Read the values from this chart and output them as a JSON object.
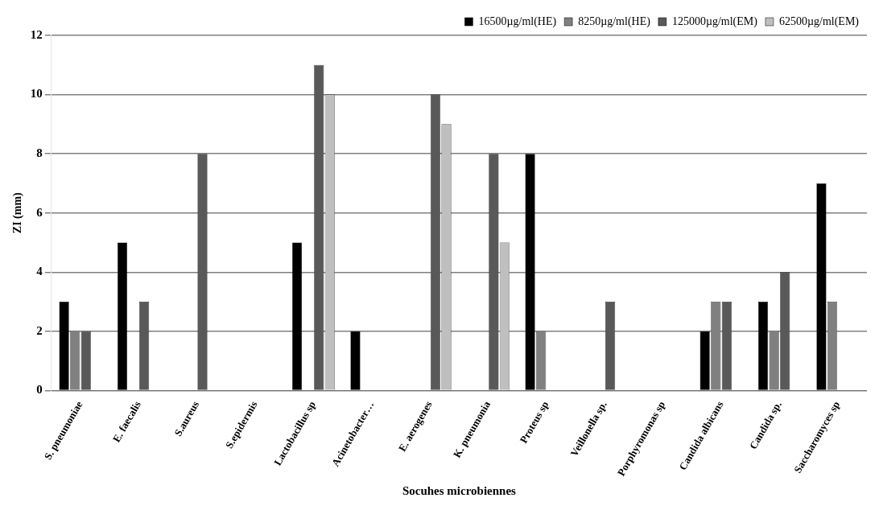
{
  "chart_data": {
    "type": "bar",
    "xlabel": "Socuhes microbiennes",
    "ylabel": "ZI (mm)",
    "categories": [
      "S. pneumoniae",
      "E. faecalis",
      "S.aureus",
      "S.epidermis",
      "Lactobacillus sp",
      "Acinetobacter…",
      "E. aerogenes",
      "K. pneumonia",
      "Proteus sp",
      "Veillonella sp.",
      "Porphyromonas sp",
      "Candida albicans",
      "Candida sp.",
      "Saccharomyces sp"
    ],
    "series": [
      {
        "name": "16500µg/ml(HE)",
        "color": "#000000",
        "values": [
          3,
          5,
          0,
          0,
          5,
          2,
          0,
          0,
          8,
          0,
          0,
          2,
          3,
          7
        ]
      },
      {
        "name": "8250µg/ml(HE)",
        "color": "#808080",
        "values": [
          2,
          0,
          0,
          0,
          0,
          0,
          0,
          0,
          2,
          0,
          0,
          3,
          2,
          3
        ]
      },
      {
        "name": "125000µg/ml(EM)",
        "color": "#595959",
        "values": [
          2,
          3,
          8,
          0,
          11,
          0,
          10,
          8,
          0,
          3,
          0,
          3,
          4,
          0
        ]
      },
      {
        "name": "62500µg/ml(EM)",
        "color": "#bfbfbf",
        "values": [
          0,
          0,
          0,
          0,
          10,
          0,
          9,
          5,
          0,
          0,
          0,
          0,
          0,
          0
        ]
      }
    ],
    "ylim": [
      0,
      12
    ],
    "yticks": [
      0,
      2,
      4,
      6,
      8,
      10,
      12
    ],
    "grid": "y",
    "legend": "top right"
  }
}
